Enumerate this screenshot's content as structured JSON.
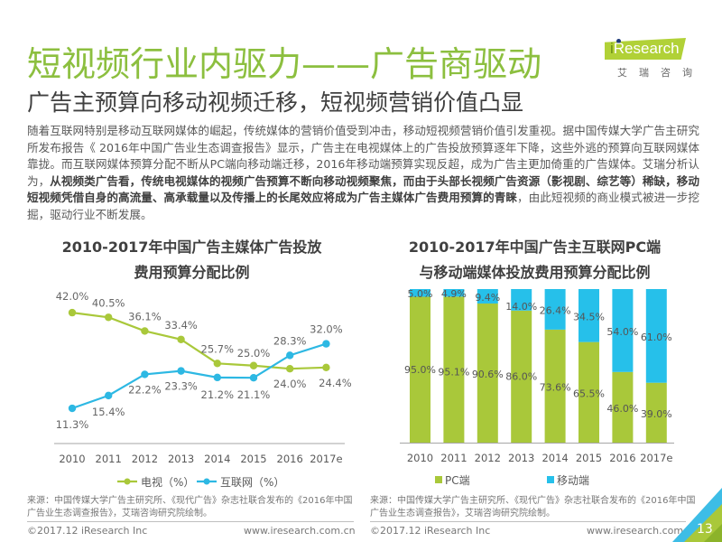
{
  "header": {
    "title": "短视频行业内驱力——广告商驱动",
    "subtitle": "广告主预算向移动视频迁移，短视频营销价值凸显"
  },
  "logo": {
    "brand": "Research",
    "brand_prefix": "i",
    "chinese_name": "艾瑞咨询",
    "accent_color": "#b1d137"
  },
  "body_text": {
    "part1": "随着互联网特别是移动互联网媒体的崛起，传统媒体的营销价值受到冲击，移动短视频营销价值引发重视。据中国传媒大学广告主研究所发布报告《 2016年中国广告业生态调查报告》显示，广告主在电视媒体上的广告投放预算逐年下降，这些外逃的预算向互联网媒体靠拢。而互联网媒体预算分配不断从PC端向移动端迁移，2016年移动端预算实现反超，成为广告主更加倚重的广告媒体。艾瑞分析认为，",
    "bold": "从视频类广告看，传统电视媒体的视频广告预算不断向移动视频聚焦，而由于头部长视频广告资源（影视剧、综艺等）稀缺，移动短视频凭借自身的高流量、高承载量以及传播上的长尾效应将成为广告主媒体广告费用预算的青睐",
    "part2": "，由此短视频的商业模式被进一步挖掘，驱动行业不断发展。"
  },
  "chart_data": [
    {
      "type": "line",
      "title": "2010-2017年中国广告主媒体广告投放费用预算分配比例",
      "title_line1": "2010-2017年中国广告主媒体广告投放",
      "title_line2": "费用预算分配比例",
      "categories": [
        "2010",
        "2011",
        "2012",
        "2013",
        "2014",
        "2015",
        "2016",
        "2017e"
      ],
      "series": [
        {
          "name": "电视（%）",
          "color": "#a9c83a",
          "values": [
            42.0,
            40.5,
            36.1,
            33.4,
            25.7,
            25.0,
            24.0,
            24.4
          ],
          "labels": [
            "42.0%",
            "40.5%",
            "36.1%",
            "33.4%",
            "25.7%",
            "25.0%",
            "24.0%",
            "24.4%"
          ]
        },
        {
          "name": "互联网（%）",
          "color": "#2db8e3",
          "values": [
            11.3,
            15.4,
            22.2,
            23.3,
            21.2,
            21.1,
            28.3,
            32.0
          ],
          "labels": [
            "11.3%",
            "15.4%",
            "22.2%",
            "23.3%",
            "21.2%",
            "21.1%",
            "28.3%",
            "32.0%"
          ]
        }
      ],
      "ylim": [
        0,
        42
      ],
      "grid": false,
      "legend": "bottom",
      "source": "来源：中国传媒大学广告主研究所、《现代广告》杂志社联合发布的《2016年中国广告业生态调查报告》，艾瑞咨询研究院绘制。"
    },
    {
      "type": "bar",
      "stacked": true,
      "title": "2010-2017年中国广告主互联网PC端与移动端媒体投放费用预算分配比例",
      "title_line1": "2010-2017年中国广告主互联网PC端",
      "title_line2": "与移动端媒体投放费用预算分配比例",
      "categories": [
        "2010",
        "2011",
        "2012",
        "2013",
        "2014",
        "2015",
        "2016",
        "2017e"
      ],
      "series": [
        {
          "name": "PC端",
          "color": "#a9c83a",
          "values": [
            95.0,
            95.1,
            90.6,
            86.0,
            73.6,
            65.5,
            46.0,
            39.0
          ],
          "labels": [
            "95.0%",
            "95.1%",
            "90.6%",
            "86.0%",
            "73.6%",
            "65.5%",
            "46.0%",
            "39.0%"
          ]
        },
        {
          "name": "移动端",
          "color": "#26c0ea",
          "values": [
            5.0,
            4.9,
            9.4,
            14.0,
            26.4,
            34.5,
            54.0,
            61.0
          ],
          "labels": [
            "5.0%",
            "4.9%",
            "9.4%",
            "14.0%",
            "26.4%",
            "34.5%",
            "54.0%",
            "61.0%"
          ]
        }
      ],
      "ylim": [
        0,
        100
      ],
      "grid": false,
      "legend": "bottom",
      "source": "来源：中国传媒大学广告主研究所、《现代广告》杂志社联合发布的《2016年中国广告业生态调查报告》，艾瑞咨询研究院绘制。"
    }
  ],
  "footer": {
    "copyright": "©2017.12 iResearch Inc",
    "website": "www.iresearch.com.cn",
    "page_number": "13"
  }
}
